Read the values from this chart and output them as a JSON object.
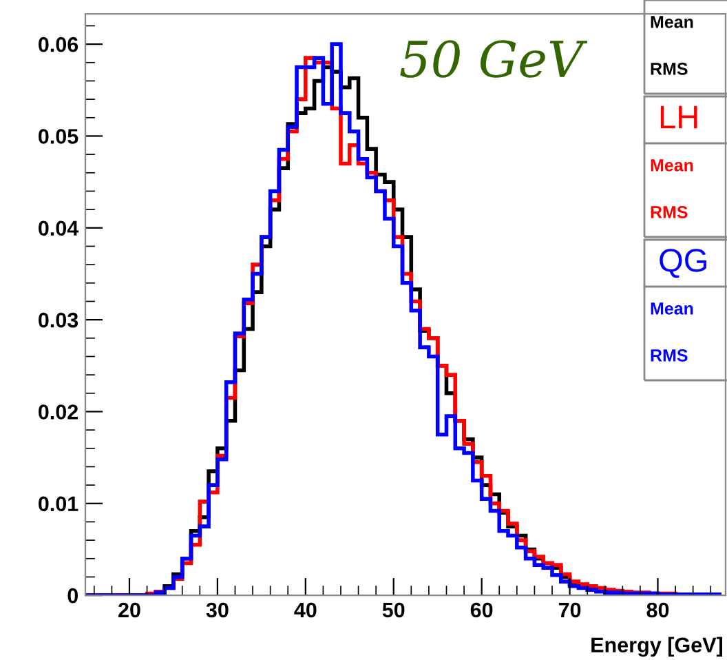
{
  "chart_data": {
    "type": "histogram",
    "title": "50 GeV",
    "xlabel": "Energy [GeV]",
    "bins": [
      15,
      16,
      17,
      18,
      19,
      20,
      21,
      22,
      23,
      24,
      25,
      26,
      27,
      28,
      29,
      30,
      31,
      32,
      33,
      34,
      35,
      36,
      37,
      38,
      39,
      40,
      41,
      42,
      43,
      44,
      45,
      46,
      47,
      48,
      49,
      50,
      51,
      52,
      53,
      54,
      55,
      56,
      57,
      58,
      59,
      60,
      61,
      62,
      63,
      64,
      65,
      66,
      67,
      68,
      69,
      70,
      71,
      72,
      73,
      74,
      75,
      76,
      77,
      78,
      79,
      80,
      81,
      82,
      83,
      84,
      85,
      86,
      87
    ],
    "series": [
      {
        "color": "#000000",
        "values": [
          0,
          0,
          0,
          0,
          0,
          0,
          0,
          0,
          0.0003,
          0.001,
          0.0023,
          0.004,
          0.007,
          0.0085,
          0.0135,
          0.016,
          0.019,
          0.0245,
          0.029,
          0.033,
          0.038,
          0.042,
          0.0465,
          0.0513,
          0.0525,
          0.053,
          0.056,
          0.0575,
          0.057,
          0.0553,
          0.0563,
          0.052,
          0.0486,
          0.0458,
          0.045,
          0.042,
          0.039,
          0.0333,
          0.0288,
          0.028,
          0.025,
          0.022,
          0.019,
          0.017,
          0.015,
          0.012,
          0.011,
          0.009,
          0.0075,
          0.0065,
          0.005,
          0.004,
          0.0035,
          0.003,
          0.002,
          0.0012,
          0.001,
          0.0008,
          0.0005,
          0.0004,
          0.0002,
          0.0002,
          0.0002,
          0.0002,
          0.0002,
          0.0001,
          0.0001,
          0.0001,
          0.0001,
          0.0001,
          0.0001,
          0.0001
        ]
      },
      {
        "name": "LH",
        "color": "#ff0000",
        "values": [
          0,
          0,
          0,
          0,
          0,
          0,
          0,
          0.0002,
          0.0004,
          0.0008,
          0.0018,
          0.0035,
          0.0055,
          0.0102,
          0.0112,
          0.0152,
          0.0215,
          0.0282,
          0.0318,
          0.036,
          0.039,
          0.043,
          0.0475,
          0.0505,
          0.054,
          0.0585,
          0.058,
          0.058,
          0.053,
          0.047,
          0.049,
          0.047,
          0.046,
          0.044,
          0.043,
          0.039,
          0.035,
          0.032,
          0.029,
          0.028,
          0.025,
          0.024,
          0.019,
          0.0165,
          0.0145,
          0.013,
          0.01,
          0.0092,
          0.0078,
          0.006,
          0.0048,
          0.0042,
          0.0035,
          0.0033,
          0.0023,
          0.0015,
          0.0012,
          0.001,
          0.0008,
          0.0006,
          0.0005,
          0.0004,
          0.0003,
          0.0003,
          0.0002,
          0.0002,
          0.0002,
          0.0001,
          0.0001,
          0.0001,
          0.0001,
          0.0001
        ]
      },
      {
        "name": "QG",
        "color": "#0000ff",
        "values": [
          0,
          0,
          0,
          0,
          0,
          0,
          0,
          0,
          0.0003,
          0.0008,
          0.002,
          0.004,
          0.0065,
          0.0075,
          0.012,
          0.0148,
          0.0232,
          0.0285,
          0.0322,
          0.035,
          0.039,
          0.044,
          0.0485,
          0.051,
          0.0575,
          0.0575,
          0.0585,
          0.0535,
          0.06,
          0.0525,
          0.0505,
          0.0475,
          0.0455,
          0.044,
          0.041,
          0.038,
          0.034,
          0.031,
          0.027,
          0.026,
          0.0175,
          0.0195,
          0.016,
          0.0155,
          0.0125,
          0.0105,
          0.0092,
          0.007,
          0.0065,
          0.0052,
          0.004,
          0.0033,
          0.003,
          0.0022,
          0.0015,
          0.001,
          0.0008,
          0.0006,
          0.0004,
          0.0003,
          0.0003,
          0.0002,
          0.0002,
          0.0002,
          0.0002,
          0.0001,
          0.0001,
          0.0001,
          0.0001,
          0.0001,
          0.0001,
          0.0001
        ]
      }
    ],
    "xlim": [
      15,
      87.7
    ],
    "xticks": [
      20,
      30,
      40,
      50,
      60,
      70,
      80
    ],
    "ylim": [
      0,
      0.0633
    ],
    "yticks": [
      0,
      0.01,
      0.02,
      0.03,
      0.04,
      0.05,
      0.06
    ],
    "annotations": [
      "Mean",
      "RMS",
      "Mean",
      "RMS",
      "Mean",
      "RMS"
    ],
    "grid": false,
    "legend": "top right"
  }
}
